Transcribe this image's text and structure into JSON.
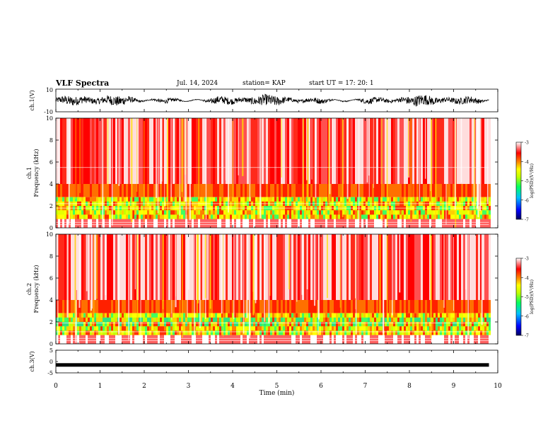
{
  "header": {
    "title": "VLF Spectra",
    "date": "Jul. 14, 2024",
    "station": "station= KAP",
    "start_ut": "start UT =   17: 20: 1"
  },
  "chart_data": [
    {
      "type": "line",
      "panel": "ch1-waveform",
      "ylabel": "ch.1(V)",
      "ylim": [
        -10,
        10
      ],
      "yticks": [
        "10",
        "-10"
      ],
      "xlim": [
        0,
        10
      ],
      "note_series": "dense noise waveform oscillating roughly between -5 and 5 V across 0–9.8 min"
    },
    {
      "type": "heatmap",
      "panel": "ch1-spectrogram",
      "ylabel": "ch.1\nFrequency (kHz)",
      "ylabel_line1": "ch.1",
      "ylabel_line2": "Frequency (kHz)",
      "ylim": [
        0,
        10
      ],
      "yticks": [
        "0",
        "2",
        "4",
        "6",
        "8",
        "10"
      ],
      "xlim": [
        0,
        10
      ],
      "colorbar": {
        "label": "log(PSD)(V²/Hz)",
        "range": [
          -7,
          -3
        ],
        "ticks": [
          "-3",
          "-4",
          "-5",
          "-6",
          "-7"
        ],
        "colors": [
          "#000060",
          "#0000ff",
          "#00c0ff",
          "#00ff60",
          "#80ff00",
          "#ffff00",
          "#ff8000",
          "#ff0000",
          "#ffffff"
        ]
      }
    },
    {
      "type": "heatmap",
      "panel": "ch2-spectrogram",
      "ylabel_line1": "ch.2",
      "ylabel_line2": "Frequency (kHz)",
      "ylim": [
        0,
        10
      ],
      "yticks": [
        "0",
        "2",
        "4",
        "6",
        "8",
        "10"
      ],
      "xlim": [
        0,
        10
      ],
      "colorbar": {
        "label": "log(PSD)(V²/Hz)",
        "range": [
          -7,
          -3
        ],
        "ticks": [
          "-3",
          "-4",
          "-5",
          "-6",
          "-7"
        ]
      }
    },
    {
      "type": "line",
      "panel": "ch3-waveform",
      "ylabel": "ch.3(V)",
      "ylim": [
        -5,
        5
      ],
      "yticks": [
        "5",
        "0",
        "-5"
      ],
      "xlim": [
        0,
        10
      ],
      "xticks": [
        "0",
        "1",
        "2",
        "3",
        "4",
        "5",
        "6",
        "7",
        "8",
        "9",
        "10"
      ],
      "xlabel": "Time (min)",
      "series_level": -1.5,
      "data_end_min": 9.8
    }
  ]
}
